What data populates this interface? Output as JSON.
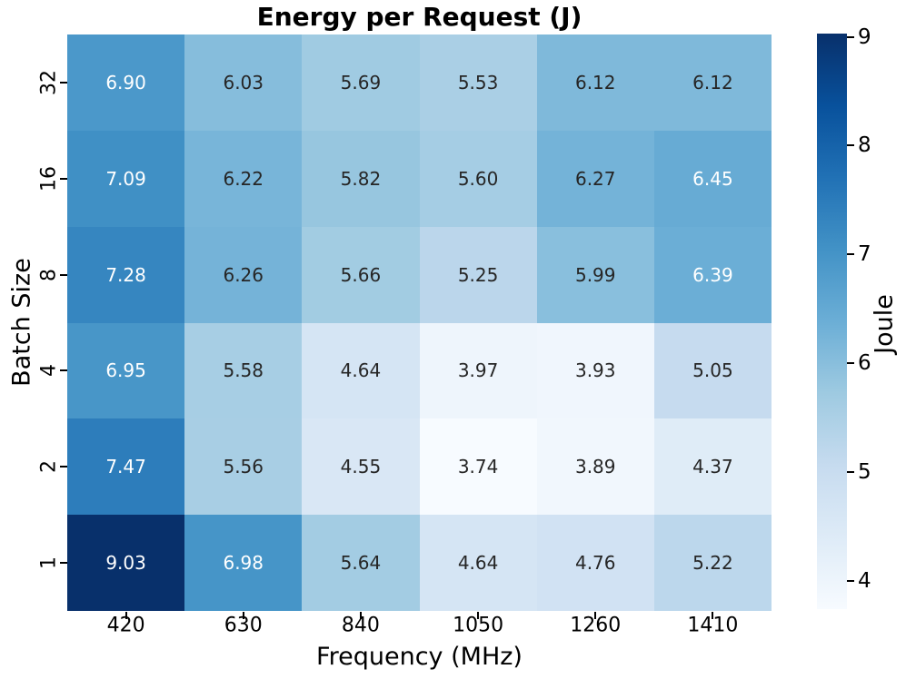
{
  "chart_data": {
    "type": "heatmap",
    "title": "Energy per Request (J)",
    "xlabel": "Frequency (MHz)",
    "ylabel": "Batch Size",
    "x_categories": [
      "420",
      "630",
      "840",
      "1050",
      "1260",
      "1410"
    ],
    "y_categories": [
      "32",
      "16",
      "8",
      "4",
      "2",
      "1"
    ],
    "values": [
      [
        6.9,
        6.03,
        5.69,
        5.53,
        6.12,
        6.12
      ],
      [
        7.09,
        6.22,
        5.82,
        5.6,
        6.27,
        6.45
      ],
      [
        7.28,
        6.26,
        5.66,
        5.25,
        5.99,
        6.39
      ],
      [
        6.95,
        5.58,
        4.64,
        3.97,
        3.93,
        5.05
      ],
      [
        7.47,
        5.56,
        4.55,
        3.74,
        3.89,
        4.37
      ],
      [
        9.03,
        6.98,
        5.64,
        4.64,
        4.76,
        5.22
      ]
    ],
    "value_decimals": 2,
    "vmin": 3.74,
    "vmax": 9.03,
    "colormap": "Blues",
    "colormap_stops": [
      "#f7fbff",
      "#deebf7",
      "#c6dbef",
      "#9ecae1",
      "#6baed6",
      "#4292c6",
      "#2171b5",
      "#08519c",
      "#08306b"
    ],
    "annotation_color_light": "#ffffff",
    "annotation_color_dark": "#262626",
    "grid": false,
    "colorbar": {
      "label": "Joule",
      "ticks": [
        "4",
        "5",
        "6",
        "7",
        "8",
        "9"
      ],
      "position": "right"
    }
  }
}
